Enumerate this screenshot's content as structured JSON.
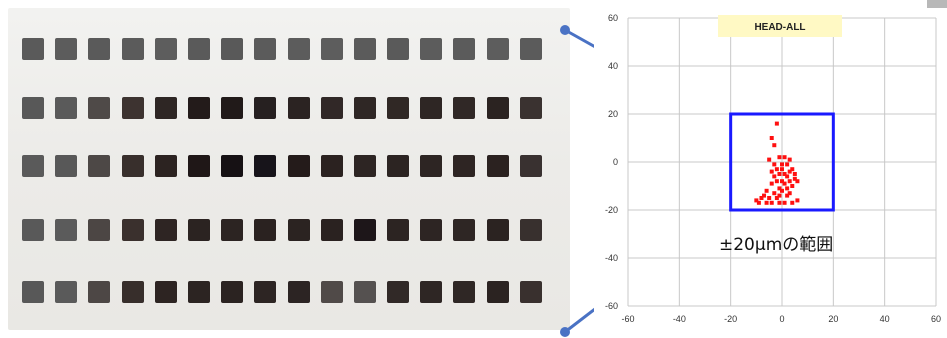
{
  "colors": {
    "range_box": "#1a1aff",
    "points": "#ff1010",
    "connector": "#4a72c4",
    "title_bg": "#fff9c4",
    "grid": "#c8c8c8"
  },
  "photo": {
    "description_icon": "print-sample-photo-icon",
    "rows": [
      [
        "#5a5a5a",
        "#5c5c5c",
        "#5a5a5a",
        "#5b5b5b",
        "#5d5d5d",
        "#5a5a5a",
        "#595959",
        "#5b5b5b",
        "#5c5c5c",
        "#5d5d5d",
        "#5b5b5b",
        "#5a5a5a",
        "#5c5c5c",
        "#5b5b5b",
        "#5d5d5d",
        "#5b5b5b"
      ],
      [
        "#585858",
        "#5a5a5a",
        "#4f4a48",
        "#3d3330",
        "#2e2624",
        "#231b1a",
        "#211a19",
        "#262020",
        "#2b2322",
        "#312827",
        "#2f2725",
        "#302825",
        "#2e2624",
        "#302826",
        "#2b2321",
        "#3a3230"
      ],
      [
        "#5a5a5a",
        "#585858",
        "#4d4846",
        "#382f2c",
        "#2c2321",
        "#1f1717",
        "#161114",
        "#17141a",
        "#241b1a",
        "#2b2220",
        "#2d2523",
        "#2c2422",
        "#2d2523",
        "#2e2523",
        "#2b2220",
        "#393130"
      ],
      [
        "#595959",
        "#5b5b5b",
        "#4c4644",
        "#3a302d",
        "#2e2523",
        "#2b2321",
        "#2c2422",
        "#2a2220",
        "#2b2321",
        "#2a2220",
        "#1d1619",
        "#2c2422",
        "#2d2523",
        "#2e2624",
        "#2b2321",
        "#38302e"
      ],
      [
        "#585858",
        "#5a5a5a",
        "#4d4745",
        "#372e2b",
        "#2d2422",
        "#2c2422",
        "#2b2321",
        "#2d2523",
        "#2c2423",
        "#504a48",
        "#555150",
        "#312927",
        "#2e2624",
        "#2f2725",
        "#2b2321",
        "#39302e"
      ]
    ]
  },
  "chart_data": {
    "type": "scatter",
    "title": "HEAD-ALL",
    "xlim": [
      -60,
      60
    ],
    "ylim": [
      -60,
      60
    ],
    "xticks": [
      "-60",
      "-40",
      "-20",
      "0",
      "20",
      "40",
      "60"
    ],
    "yticks": [
      "60",
      "40",
      "20",
      "0",
      "-20",
      "-40",
      "-60"
    ],
    "grid": true,
    "range_box": {
      "x": [
        -20,
        20
      ],
      "y": [
        -20,
        20
      ]
    },
    "annotation": "±20μmの範囲",
    "series": [
      {
        "points": [
          [
            -2,
            16
          ],
          [
            -4,
            10
          ],
          [
            -3,
            7
          ],
          [
            -5,
            1
          ],
          [
            -1,
            2
          ],
          [
            1,
            2
          ],
          [
            3,
            1
          ],
          [
            -3,
            -1
          ],
          [
            0,
            -1
          ],
          [
            2,
            -1
          ],
          [
            4,
            -3
          ],
          [
            -2,
            -3
          ],
          [
            0,
            -3
          ],
          [
            3,
            -4
          ],
          [
            -4,
            -4
          ],
          [
            -1,
            -5
          ],
          [
            1,
            -5
          ],
          [
            5,
            -5
          ],
          [
            -3,
            -6
          ],
          [
            2,
            -6
          ],
          [
            5,
            -7
          ],
          [
            -2,
            -8
          ],
          [
            0,
            -8
          ],
          [
            3,
            -8
          ],
          [
            6,
            -8
          ],
          [
            -4,
            -9
          ],
          [
            1,
            -9
          ],
          [
            4,
            -10
          ],
          [
            -1,
            -11
          ],
          [
            2,
            -11
          ],
          [
            -6,
            -12
          ],
          [
            0,
            -12
          ],
          [
            -3,
            -13
          ],
          [
            3,
            -13
          ],
          [
            -7,
            -14
          ],
          [
            -1,
            -14
          ],
          [
            2,
            -14
          ],
          [
            -8,
            -15
          ],
          [
            -5,
            -15
          ],
          [
            -2,
            -15
          ],
          [
            -10,
            -16
          ],
          [
            -6,
            -17
          ],
          [
            -4,
            -17
          ],
          [
            -1,
            -17
          ],
          [
            1,
            -17
          ],
          [
            4,
            -17
          ],
          [
            -9,
            -17
          ],
          [
            6,
            -16
          ]
        ]
      }
    ]
  }
}
